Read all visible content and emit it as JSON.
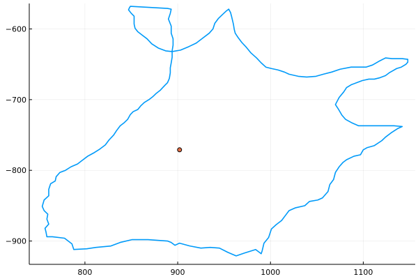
{
  "chart_data": {
    "type": "scatter",
    "title": "",
    "xlabel": "",
    "ylabel": "",
    "xlim": [
      740,
      1156
    ],
    "ylim": [
      -933,
      -564
    ],
    "grid": true,
    "legend": "none",
    "x_ticks": [
      {
        "value": 800,
        "label": "800"
      },
      {
        "value": 900,
        "label": "900"
      },
      {
        "value": 1000,
        "label": "1000"
      },
      {
        "value": 1100,
        "label": "1100"
      }
    ],
    "y_ticks": [
      {
        "value": -600,
        "label": "−600"
      },
      {
        "value": -700,
        "label": "−700"
      },
      {
        "value": -800,
        "label": "−800"
      },
      {
        "value": -900,
        "label": "−900"
      }
    ],
    "series": [
      {
        "kind": "line",
        "color": "#009af9",
        "points": [
          [
            889,
            -571
          ],
          [
            893,
            -572
          ],
          [
            892,
            -578
          ],
          [
            890,
            -586
          ],
          [
            893,
            -596
          ],
          [
            893,
            -606
          ],
          [
            895,
            -614
          ],
          [
            895,
            -623
          ],
          [
            894,
            -631
          ],
          [
            894,
            -640
          ],
          [
            893,
            -648
          ],
          [
            892,
            -655
          ],
          [
            892,
            -662
          ],
          [
            891,
            -670
          ],
          [
            889,
            -676
          ],
          [
            886,
            -680
          ],
          [
            881,
            -687
          ],
          [
            877,
            -691
          ],
          [
            873,
            -696
          ],
          [
            869,
            -700
          ],
          [
            864,
            -704
          ],
          [
            860,
            -709
          ],
          [
            857,
            -714
          ],
          [
            852,
            -717
          ],
          [
            849,
            -721
          ],
          [
            846,
            -728
          ],
          [
            842,
            -733
          ],
          [
            838,
            -737
          ],
          [
            834,
            -744
          ],
          [
            831,
            -750
          ],
          [
            826,
            -757
          ],
          [
            822,
            -764
          ],
          [
            816,
            -770
          ],
          [
            810,
            -775
          ],
          [
            803,
            -780
          ],
          [
            797,
            -786
          ],
          [
            792,
            -791
          ],
          [
            785,
            -795
          ],
          [
            779,
            -800
          ],
          [
            773,
            -803
          ],
          [
            769,
            -809
          ],
          [
            768,
            -815
          ],
          [
            763,
            -819
          ],
          [
            761,
            -827
          ],
          [
            761,
            -836
          ],
          [
            756,
            -842
          ],
          [
            754,
            -851
          ],
          [
            756,
            -857
          ],
          [
            760,
            -862
          ],
          [
            759,
            -869
          ],
          [
            761,
            -876
          ],
          [
            757,
            -882
          ],
          [
            758,
            -887
          ],
          [
            759,
            -894
          ],
          [
            765,
            -894
          ],
          [
            778,
            -896
          ],
          [
            786,
            -904
          ],
          [
            788,
            -912
          ],
          [
            802,
            -911
          ],
          [
            812,
            -909
          ],
          [
            828,
            -907
          ],
          [
            838,
            -902
          ],
          [
            851,
            -898
          ],
          [
            868,
            -898
          ],
          [
            889,
            -900
          ],
          [
            893,
            -902
          ],
          [
            897,
            -906
          ],
          [
            902,
            -903
          ],
          [
            913,
            -907
          ],
          [
            925,
            -910
          ],
          [
            935,
            -909
          ],
          [
            945,
            -910
          ],
          [
            954,
            -916
          ],
          [
            963,
            -921
          ],
          [
            972,
            -917
          ],
          [
            984,
            -912
          ],
          [
            990,
            -918
          ],
          [
            991,
            -914
          ],
          [
            993,
            -903
          ],
          [
            998,
            -895
          ],
          [
            1001,
            -883
          ],
          [
            1006,
            -877
          ],
          [
            1012,
            -871
          ],
          [
            1016,
            -864
          ],
          [
            1020,
            -857
          ],
          [
            1027,
            -853
          ],
          [
            1037,
            -850
          ],
          [
            1042,
            -844
          ],
          [
            1051,
            -842
          ],
          [
            1056,
            -839
          ],
          [
            1062,
            -830
          ],
          [
            1064,
            -820
          ],
          [
            1068,
            -813
          ],
          [
            1070,
            -803
          ],
          [
            1074,
            -795
          ],
          [
            1078,
            -789
          ],
          [
            1082,
            -785
          ],
          [
            1090,
            -780
          ],
          [
            1097,
            -778
          ],
          [
            1100,
            -771
          ],
          [
            1104,
            -768
          ],
          [
            1112,
            -765
          ],
          [
            1120,
            -758
          ],
          [
            1124,
            -753
          ],
          [
            1130,
            -747
          ],
          [
            1137,
            -741
          ],
          [
            1142,
            -738
          ],
          [
            1133,
            -737
          ],
          [
            1120,
            -737
          ],
          [
            1110,
            -737
          ],
          [
            1101,
            -737
          ],
          [
            1095,
            -737
          ],
          [
            1088,
            -733
          ],
          [
            1081,
            -728
          ],
          [
            1077,
            -722
          ],
          [
            1073,
            -713
          ],
          [
            1070,
            -707
          ],
          [
            1074,
            -697
          ],
          [
            1079,
            -689
          ],
          [
            1082,
            -683
          ],
          [
            1087,
            -679
          ],
          [
            1093,
            -676
          ],
          [
            1099,
            -673
          ],
          [
            1106,
            -671
          ],
          [
            1112,
            -671
          ],
          [
            1118,
            -669
          ],
          [
            1124,
            -666
          ],
          [
            1128,
            -662
          ],
          [
            1132,
            -659
          ],
          [
            1136,
            -656
          ],
          [
            1141,
            -654
          ],
          [
            1146,
            -650
          ],
          [
            1148,
            -647
          ],
          [
            1148,
            -643
          ],
          [
            1142,
            -642
          ],
          [
            1131,
            -642
          ],
          [
            1124,
            -641
          ],
          [
            1118,
            -645
          ],
          [
            1110,
            -651
          ],
          [
            1103,
            -654
          ],
          [
            1094,
            -654
          ],
          [
            1087,
            -654
          ],
          [
            1075,
            -657
          ],
          [
            1066,
            -661
          ],
          [
            1057,
            -664
          ],
          [
            1049,
            -667
          ],
          [
            1039,
            -668
          ],
          [
            1030,
            -667
          ],
          [
            1020,
            -664
          ],
          [
            1015,
            -661
          ],
          [
            1008,
            -658
          ],
          [
            1001,
            -656
          ],
          [
            995,
            -654
          ],
          [
            990,
            -648
          ],
          [
            985,
            -641
          ],
          [
            979,
            -634
          ],
          [
            974,
            -626
          ],
          [
            969,
            -619
          ],
          [
            965,
            -612
          ],
          [
            962,
            -606
          ],
          [
            961,
            -601
          ],
          [
            960,
            -593
          ],
          [
            958,
            -582
          ],
          [
            957,
            -577
          ],
          [
            955,
            -572
          ],
          [
            952,
            -575
          ],
          [
            948,
            -580
          ],
          [
            944,
            -585
          ],
          [
            940,
            -592
          ],
          [
            938,
            -600
          ],
          [
            934,
            -606
          ],
          [
            927,
            -613
          ],
          [
            920,
            -620
          ],
          [
            912,
            -625
          ],
          [
            903,
            -630
          ],
          [
            894,
            -632
          ],
          [
            887,
            -631
          ],
          [
            879,
            -627
          ],
          [
            872,
            -621
          ],
          [
            867,
            -614
          ],
          [
            861,
            -608
          ],
          [
            857,
            -604
          ],
          [
            854,
            -599
          ],
          [
            853,
            -593
          ],
          [
            853,
            -588
          ],
          [
            853,
            -582
          ],
          [
            850,
            -578
          ],
          [
            847,
            -573
          ],
          [
            848,
            -570
          ],
          [
            849,
            -568
          ],
          [
            889,
            -571
          ]
        ]
      },
      {
        "kind": "point",
        "color": "#e26f46",
        "points": [
          [
            902,
            -771
          ]
        ]
      }
    ]
  }
}
